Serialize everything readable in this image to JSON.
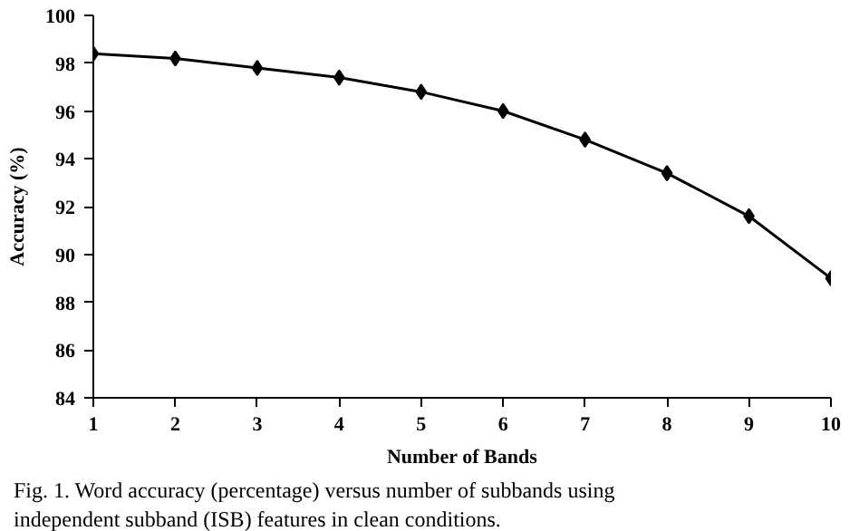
{
  "chart_data": {
    "type": "line",
    "xlabel": "Number of Bands",
    "ylabel": "Accuracy (%)",
    "x": [
      1,
      2,
      3,
      4,
      5,
      6,
      7,
      8,
      9,
      10
    ],
    "series": [
      {
        "color": "#000000",
        "values": [
          98.4,
          98.2,
          97.8,
          97.4,
          96.8,
          96.0,
          94.8,
          93.4,
          91.6,
          89.0
        ]
      }
    ],
    "xlim": [
      1,
      10
    ],
    "xticks": [
      1,
      2,
      3,
      4,
      5,
      6,
      7,
      8,
      9,
      10
    ],
    "ylim": [
      84,
      100
    ],
    "yticks": [
      84,
      86,
      88,
      90,
      92,
      94,
      96,
      98,
      100
    ],
    "grid": false,
    "marker": "diamond",
    "line_style": "solid",
    "annotations": [
      "Fig. 1.  Word accuracy (percentage) versus number of subbands using",
      "independent subband (ISB) features in clean conditions."
    ]
  }
}
